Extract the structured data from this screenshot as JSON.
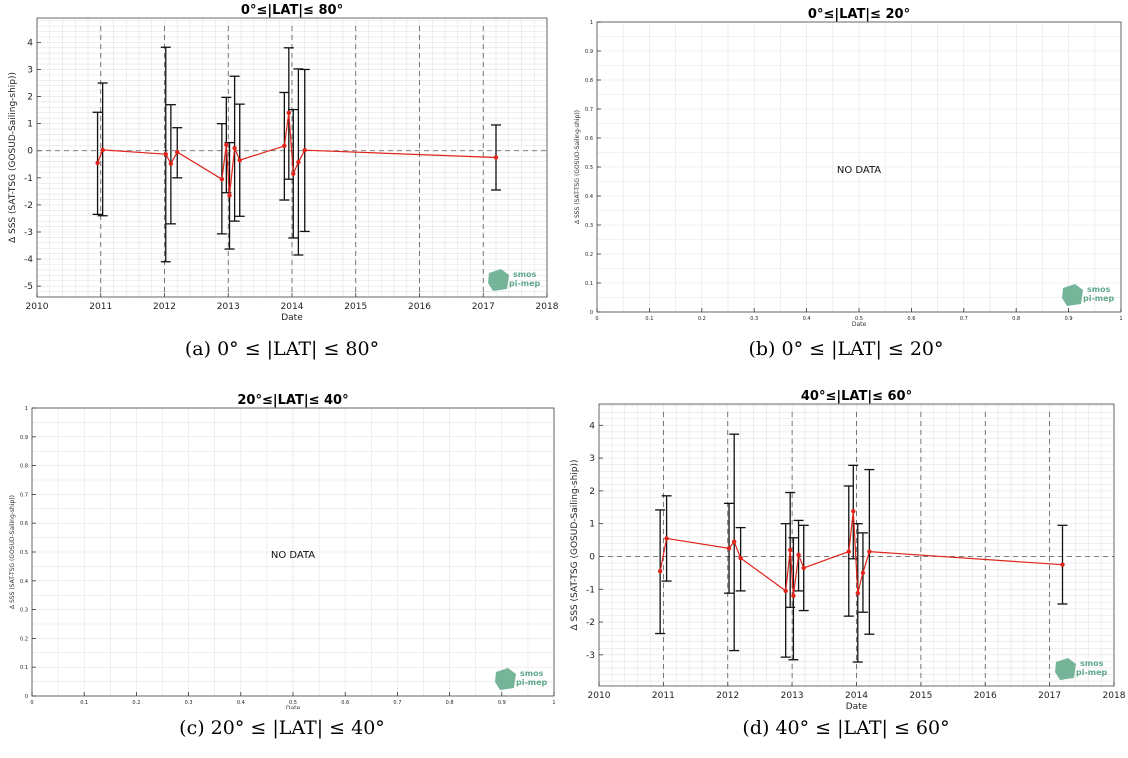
{
  "logo": {
    "line1": "smos",
    "line2": "pi-mep",
    "color": "#5fa88a"
  },
  "colors": {
    "series": "#e0241a",
    "errorbar": "#111111",
    "grid": "#e3e3e3",
    "dash": "#555555"
  },
  "chart_data": [
    {
      "id": "a",
      "type": "line",
      "title": "0°≤|LAT|≤ 80°",
      "caption": "(a) 0° ≤ |LAT| ≤ 80°",
      "xlabel": "Date",
      "ylabel": "Δ SSS (SAT-TSG (GOSUD-Sailing-ship))",
      "xlim": [
        2010,
        2018
      ],
      "ylim": [
        -5.4,
        4.9
      ],
      "xticks": [
        "2010",
        "2011",
        "2012",
        "2013",
        "2014",
        "2015",
        "2016",
        "2017",
        "2018"
      ],
      "yticks": [
        "4",
        "3",
        "2",
        "1",
        "0",
        "-1",
        "-2",
        "-3",
        "-4",
        "-5"
      ],
      "has_data": true,
      "nodata_text": "",
      "points": [
        {
          "x": 2010.95,
          "y": -0.45,
          "lo": -2.35,
          "hi": 1.42
        },
        {
          "x": 2011.03,
          "y": 0.03,
          "lo": -2.4,
          "hi": 2.5
        },
        {
          "x": 2012.02,
          "y": -0.13,
          "lo": -4.1,
          "hi": 3.82
        },
        {
          "x": 2012.1,
          "y": -0.48,
          "lo": -2.7,
          "hi": 1.7
        },
        {
          "x": 2012.2,
          "y": -0.05,
          "lo": -1.0,
          "hi": 0.85
        },
        {
          "x": 2012.9,
          "y": -1.05,
          "lo": -3.07,
          "hi": 1.0
        },
        {
          "x": 2012.97,
          "y": 0.22,
          "lo": -1.55,
          "hi": 1.97
        },
        {
          "x": 2013.02,
          "y": -1.65,
          "lo": -3.63,
          "hi": 0.3
        },
        {
          "x": 2013.1,
          "y": 0.1,
          "lo": -2.6,
          "hi": 2.75
        },
        {
          "x": 2013.18,
          "y": -0.35,
          "lo": -2.42,
          "hi": 1.72
        },
        {
          "x": 2013.88,
          "y": 0.18,
          "lo": -1.82,
          "hi": 2.15
        },
        {
          "x": 2013.95,
          "y": 1.4,
          "lo": -1.05,
          "hi": 3.8
        },
        {
          "x": 2014.02,
          "y": -0.85,
          "lo": -3.22,
          "hi": 1.52
        },
        {
          "x": 2014.1,
          "y": -0.42,
          "lo": -3.85,
          "hi": 3.02
        },
        {
          "x": 2014.2,
          "y": 0.02,
          "lo": -2.98,
          "hi": 3.0
        },
        {
          "x": 2017.2,
          "y": -0.25,
          "lo": -1.45,
          "hi": 0.95
        }
      ]
    },
    {
      "id": "b",
      "type": "line",
      "title": "0°≤|LAT|≤ 20°",
      "caption": "(b) 0° ≤ |LAT| ≤ 20°",
      "xlabel": "Date",
      "ylabel": "Δ SSS (SAT-TSG (GOSUD-Sailing-ship))",
      "xlim": [
        0,
        1
      ],
      "ylim": [
        0,
        1
      ],
      "xticks": [
        "0",
        "0.1",
        "0.2",
        "0.3",
        "0.4",
        "0.5",
        "0.6",
        "0.7",
        "0.8",
        "0.9",
        "1"
      ],
      "yticks": [
        "1",
        "0.9",
        "0.8",
        "0.7",
        "0.6",
        "0.5",
        "0.4",
        "0.3",
        "0.2",
        "0.1",
        "0"
      ],
      "has_data": false,
      "nodata_text": "NO DATA",
      "points": []
    },
    {
      "id": "c",
      "type": "line",
      "title": "20°≤|LAT|≤ 40°",
      "caption": "(c) 20° ≤ |LAT| ≤ 40°",
      "xlabel": "Date",
      "ylabel": "Δ SSS (SAT-TSG (GOSUD-Sailing-ship))",
      "xlim": [
        0,
        1
      ],
      "ylim": [
        0,
        1
      ],
      "xticks": [
        "0",
        "0.1",
        "0.2",
        "0.3",
        "0.4",
        "0.5",
        "0.6",
        "0.7",
        "0.8",
        "0.9",
        "1"
      ],
      "yticks": [
        "1",
        "0.9",
        "0.8",
        "0.7",
        "0.6",
        "0.5",
        "0.4",
        "0.3",
        "0.2",
        "0.1",
        "0"
      ],
      "has_data": false,
      "nodata_text": "NO DATA",
      "points": []
    },
    {
      "id": "d",
      "type": "line",
      "title": "40°≤|LAT|≤ 60°",
      "caption": "(d) 40° ≤ |LAT| ≤ 60°",
      "xlabel": "Date",
      "ylabel": "Δ SSS (SAT-TSG (GOSUD-Sailing-ship))",
      "xlim": [
        2010,
        2018
      ],
      "ylim": [
        -3.95,
        4.65
      ],
      "xticks": [
        "2010",
        "2011",
        "2012",
        "2013",
        "2014",
        "2015",
        "2016",
        "2017",
        "2018"
      ],
      "yticks": [
        "4",
        "3",
        "2",
        "1",
        "0",
        "-1",
        "-2",
        "-3"
      ],
      "has_data": true,
      "nodata_text": "",
      "points": [
        {
          "x": 2010.95,
          "y": -0.45,
          "lo": -2.35,
          "hi": 1.42
        },
        {
          "x": 2011.05,
          "y": 0.55,
          "lo": -0.75,
          "hi": 1.85
        },
        {
          "x": 2012.02,
          "y": 0.25,
          "lo": -1.12,
          "hi": 1.62
        },
        {
          "x": 2012.1,
          "y": 0.45,
          "lo": -2.87,
          "hi": 3.73
        },
        {
          "x": 2012.2,
          "y": -0.05,
          "lo": -1.05,
          "hi": 0.88
        },
        {
          "x": 2012.9,
          "y": -1.05,
          "lo": -3.07,
          "hi": 1.0
        },
        {
          "x": 2012.97,
          "y": 0.2,
          "lo": -1.55,
          "hi": 1.95
        },
        {
          "x": 2013.02,
          "y": -1.2,
          "lo": -3.15,
          "hi": 0.57
        },
        {
          "x": 2013.1,
          "y": 0.05,
          "lo": -1.05,
          "hi": 1.1
        },
        {
          "x": 2013.18,
          "y": -0.35,
          "lo": -1.65,
          "hi": 0.95
        },
        {
          "x": 2013.88,
          "y": 0.15,
          "lo": -1.82,
          "hi": 2.15
        },
        {
          "x": 2013.95,
          "y": 1.38,
          "lo": -0.07,
          "hi": 2.78
        },
        {
          "x": 2014.02,
          "y": -1.12,
          "lo": -3.22,
          "hi": 1.0
        },
        {
          "x": 2014.1,
          "y": -0.5,
          "lo": -1.7,
          "hi": 0.72
        },
        {
          "x": 2014.2,
          "y": 0.15,
          "lo": -2.37,
          "hi": 2.65
        },
        {
          "x": 2017.2,
          "y": -0.25,
          "lo": -1.45,
          "hi": 0.95
        }
      ]
    }
  ]
}
